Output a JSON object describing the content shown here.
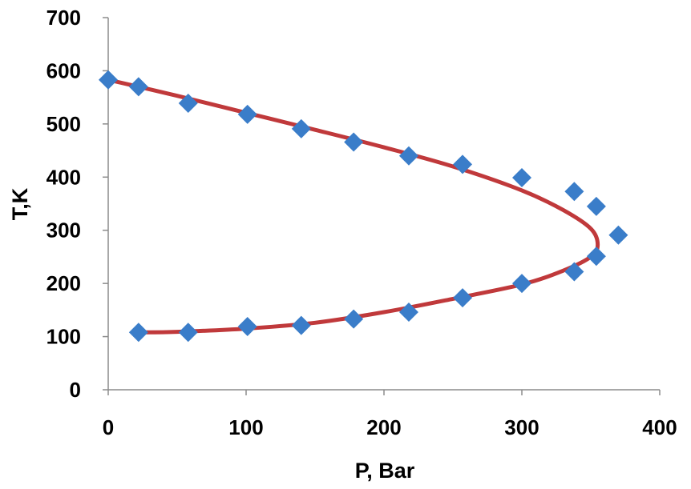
{
  "chart_data": {
    "type": "scatter",
    "title": "",
    "xlabel": "P, Bar",
    "ylabel": "T,K",
    "xlim": [
      0,
      400
    ],
    "ylim": [
      0,
      700
    ],
    "x_ticks": [
      "0",
      "100",
      "200",
      "300",
      "400"
    ],
    "y_ticks": [
      "0",
      "100",
      "200",
      "300",
      "400",
      "500",
      "600",
      "700"
    ],
    "grid": false,
    "legend": "none",
    "series": [
      {
        "kind": "scatter",
        "marker": "diamond",
        "color": "#3a7dc9",
        "points": [
          [
            0,
            583
          ],
          [
            22,
            570
          ],
          [
            58,
            539
          ],
          [
            101,
            518
          ],
          [
            140,
            491
          ],
          [
            178,
            466
          ],
          [
            218,
            440
          ],
          [
            257,
            424
          ],
          [
            300,
            399
          ],
          [
            338,
            373
          ],
          [
            354,
            345
          ],
          [
            370,
            291
          ],
          [
            354,
            251
          ],
          [
            338,
            222
          ],
          [
            300,
            200
          ],
          [
            257,
            173
          ],
          [
            218,
            146
          ],
          [
            178,
            133
          ],
          [
            140,
            121
          ],
          [
            101,
            119
          ],
          [
            58,
            108
          ],
          [
            22,
            108
          ]
        ]
      },
      {
        "kind": "line",
        "color": "#c0393b",
        "points": [
          [
            0,
            583
          ],
          [
            50,
            553
          ],
          [
            100,
            521
          ],
          [
            150,
            489
          ],
          [
            200,
            456
          ],
          [
            250,
            420
          ],
          [
            300,
            375
          ],
          [
            330,
            338
          ],
          [
            350,
            303
          ],
          [
            355,
            273
          ],
          [
            350,
            250
          ],
          [
            330,
            224
          ],
          [
            300,
            198
          ],
          [
            250,
            171
          ],
          [
            200,
            146
          ],
          [
            150,
            126
          ],
          [
            100,
            115
          ],
          [
            50,
            109
          ],
          [
            22,
            108
          ]
        ]
      }
    ]
  }
}
